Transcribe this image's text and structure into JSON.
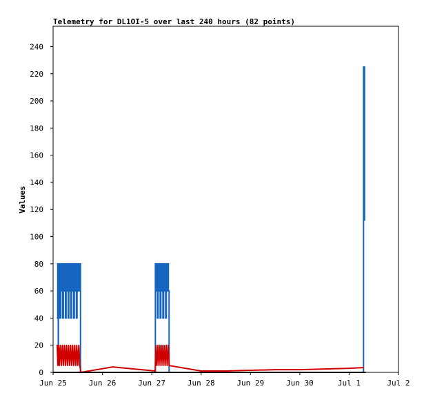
{
  "chart_data": {
    "type": "line",
    "title": "Telemetry for DL1OI-5 over last 240 hours (82 points)",
    "xlabel": "",
    "ylabel": "Values",
    "xlim": [
      "2022-06-25T00:00",
      "2022-07-02T00:00"
    ],
    "ylim": [
      0,
      255
    ],
    "grid": false,
    "legend": "none",
    "x_tick_labels": [
      "Jun 25",
      "Jun 26",
      "Jun 27",
      "Jun 28",
      "Jun 29",
      "Jun 30",
      "Jul 1",
      "Jul 2"
    ],
    "y_ticks": [
      0,
      20,
      40,
      60,
      80,
      100,
      120,
      140,
      160,
      180,
      200,
      220,
      240
    ],
    "colors": {
      "blue": "#1565c0",
      "red": "#d00000",
      "black": "#000000",
      "axis": "#000000"
    },
    "series": [
      {
        "color": "blue",
        "style": "step",
        "x": [
          "2022-06-25T02:00",
          "2022-06-25T02:15",
          "2022-06-25T02:20",
          "2022-06-25T02:30",
          "2022-06-25T02:35",
          "2022-06-25T02:45",
          "2022-06-25T03:00",
          "2022-06-25T03:10",
          "2022-06-25T03:20",
          "2022-06-25T03:30",
          "2022-06-25T03:45",
          "2022-06-25T04:00",
          "2022-06-25T04:20",
          "2022-06-25T04:40",
          "2022-06-25T05:00",
          "2022-06-25T05:20",
          "2022-06-25T05:40",
          "2022-06-25T06:00",
          "2022-06-25T06:20",
          "2022-06-25T06:40",
          "2022-06-25T07:00",
          "2022-06-25T07:20",
          "2022-06-25T07:40",
          "2022-06-25T08:00",
          "2022-06-25T08:20",
          "2022-06-25T08:40",
          "2022-06-25T09:00",
          "2022-06-25T09:20",
          "2022-06-25T09:40",
          "2022-06-25T10:00",
          "2022-06-25T10:20",
          "2022-06-25T10:40",
          "2022-06-25T11:00",
          "2022-06-25T11:20",
          "2022-06-25T11:40",
          "2022-06-25T12:00",
          "2022-06-25T12:20",
          "2022-06-25T12:40",
          "2022-06-25T13:00",
          "2022-06-25T13:20",
          "2022-06-27T01:45",
          "2022-06-27T02:05",
          "2022-06-27T02:25",
          "2022-06-27T02:45",
          "2022-06-27T03:05",
          "2022-06-27T03:25",
          "2022-06-27T03:45",
          "2022-06-27T04:05",
          "2022-06-27T04:25",
          "2022-06-27T04:45",
          "2022-06-27T05:05",
          "2022-06-27T05:25",
          "2022-06-27T05:45",
          "2022-06-27T06:05",
          "2022-06-27T06:25",
          "2022-06-27T06:45",
          "2022-06-27T07:05",
          "2022-06-27T07:25",
          "2022-06-27T07:45",
          "2022-06-27T08:05",
          "2022-06-27T08:25",
          "2022-07-01T07:00",
          "2022-07-01T07:30"
        ],
        "y": [
          40,
          80,
          40,
          20,
          80,
          60,
          40,
          60,
          80,
          40,
          80,
          60,
          80,
          40,
          80,
          60,
          80,
          40,
          80,
          60,
          80,
          40,
          80,
          60,
          80,
          40,
          80,
          60,
          80,
          40,
          80,
          60,
          80,
          40,
          80,
          60,
          80,
          60,
          80,
          0,
          80,
          60,
          80,
          40,
          80,
          60,
          80,
          40,
          80,
          60,
          80,
          40,
          80,
          60,
          80,
          40,
          80,
          60,
          80,
          60,
          0,
          225,
          112
        ]
      },
      {
        "color": "red",
        "style": "line",
        "x": [
          "2022-06-25T02:00",
          "2022-06-25T02:20",
          "2022-06-25T02:40",
          "2022-06-25T03:00",
          "2022-06-25T03:30",
          "2022-06-25T04:00",
          "2022-06-25T04:30",
          "2022-06-25T05:00",
          "2022-06-25T05:30",
          "2022-06-25T06:00",
          "2022-06-25T06:30",
          "2022-06-25T07:00",
          "2022-06-25T07:30",
          "2022-06-25T08:00",
          "2022-06-25T08:30",
          "2022-06-25T09:00",
          "2022-06-25T09:30",
          "2022-06-25T10:00",
          "2022-06-25T10:30",
          "2022-06-25T11:00",
          "2022-06-25T11:30",
          "2022-06-25T12:00",
          "2022-06-25T12:30",
          "2022-06-25T13:00",
          "2022-06-25T13:30",
          "2022-06-26T05:00",
          "2022-06-27T01:40",
          "2022-06-27T02:00",
          "2022-06-27T02:30",
          "2022-06-27T03:00",
          "2022-06-27T03:30",
          "2022-06-27T04:00",
          "2022-06-27T04:30",
          "2022-06-27T05:00",
          "2022-06-27T05:30",
          "2022-06-27T06:00",
          "2022-06-27T06:30",
          "2022-06-27T07:00",
          "2022-06-27T07:30",
          "2022-06-27T08:00",
          "2022-06-27T08:30",
          "2022-06-28T00:00",
          "2022-06-28T12:00",
          "2022-06-29T00:00",
          "2022-06-29T12:00",
          "2022-06-30T00:00",
          "2022-06-30T12:00",
          "2022-07-01T00:00",
          "2022-07-01T07:00"
        ],
        "y": [
          20,
          5,
          20,
          5,
          20,
          5,
          20,
          5,
          20,
          5,
          20,
          5,
          20,
          5,
          20,
          5,
          20,
          5,
          20,
          5,
          20,
          5,
          20,
          5,
          0,
          4,
          1,
          20,
          5,
          20,
          5,
          20,
          5,
          20,
          5,
          20,
          5,
          20,
          5,
          20,
          5,
          1,
          1,
          1.5,
          2,
          2,
          2.5,
          3,
          3.5
        ]
      },
      {
        "color": "black",
        "style": "line",
        "x": [
          "2022-06-25T00:00",
          "2022-07-01T08:00"
        ],
        "y": [
          0,
          0
        ]
      }
    ]
  }
}
